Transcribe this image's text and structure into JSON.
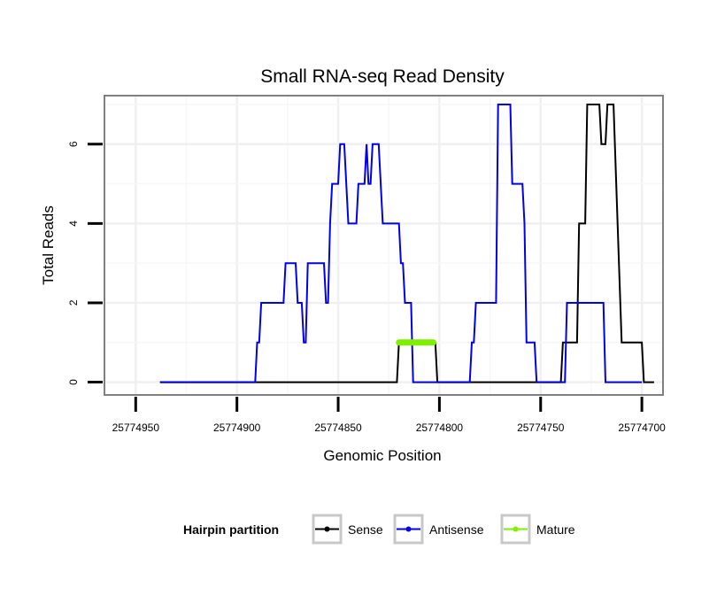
{
  "chart_data": {
    "type": "line",
    "title": "Small RNA-seq Read Density",
    "xlabel": "Genomic Position",
    "ylabel": "Total Reads",
    "xlim": [
      25774965,
      25774690
    ],
    "x_reversed": true,
    "ylim": [
      -0.3,
      7.2
    ],
    "x_ticks": [
      25774950,
      25774900,
      25774850,
      25774800,
      25774750,
      25774700
    ],
    "x_tick_labels": [
      "25774950",
      "25774900",
      "25774850",
      "25774800",
      "25774750",
      "25774700"
    ],
    "y_ticks": [
      0,
      2,
      4,
      6
    ],
    "y_tick_labels": [
      "0",
      "2",
      "4",
      "6"
    ],
    "grid": true,
    "legend": {
      "title": "Hairpin partition",
      "position": "bottom",
      "entries": [
        "Sense",
        "Antisense",
        "Mature"
      ]
    },
    "series": [
      {
        "name": "Sense",
        "color": "#000000",
        "points": [
          [
            25774938,
            0
          ],
          [
            25774821,
            0
          ],
          [
            25774820,
            1
          ],
          [
            25774802,
            1
          ],
          [
            25774801,
            0
          ],
          [
            25774740,
            0
          ],
          [
            25774739,
            1
          ],
          [
            25774732,
            1
          ],
          [
            25774731,
            4
          ],
          [
            25774728,
            4
          ],
          [
            25774727,
            7
          ],
          [
            25774721,
            7
          ],
          [
            25774720,
            6
          ],
          [
            25774718,
            6
          ],
          [
            25774717,
            7
          ],
          [
            25774714,
            7
          ],
          [
            25774712,
            4
          ],
          [
            25774710,
            1
          ],
          [
            25774700,
            1
          ],
          [
            25774699,
            0
          ],
          [
            25774694,
            0
          ]
        ]
      },
      {
        "name": "Antisense",
        "color": "#0000ee",
        "points": [
          [
            25774938,
            0
          ],
          [
            25774891,
            0
          ],
          [
            25774890,
            1
          ],
          [
            25774889,
            1
          ],
          [
            25774888,
            2
          ],
          [
            25774877,
            2
          ],
          [
            25774876,
            3
          ],
          [
            25774871,
            3
          ],
          [
            25774870,
            2
          ],
          [
            25774868,
            2
          ],
          [
            25774867,
            1
          ],
          [
            25774866,
            1
          ],
          [
            25774865,
            3
          ],
          [
            25774857,
            3
          ],
          [
            25774856,
            2
          ],
          [
            25774855,
            2
          ],
          [
            25774854,
            4
          ],
          [
            25774853,
            5
          ],
          [
            25774850,
            5
          ],
          [
            25774849,
            6
          ],
          [
            25774847,
            6
          ],
          [
            25774845,
            4
          ],
          [
            25774841,
            4
          ],
          [
            25774840,
            5
          ],
          [
            25774837,
            5
          ],
          [
            25774836,
            6
          ],
          [
            25774835,
            5
          ],
          [
            25774834,
            5
          ],
          [
            25774833,
            6
          ],
          [
            25774830,
            6
          ],
          [
            25774828,
            4
          ],
          [
            25774820,
            4
          ],
          [
            25774819,
            3
          ],
          [
            25774818,
            3
          ],
          [
            25774817,
            2
          ],
          [
            25774814,
            2
          ],
          [
            25774813,
            0
          ],
          [
            25774785,
            0
          ],
          [
            25774784,
            1
          ],
          [
            25774783,
            1
          ],
          [
            25774782,
            2
          ],
          [
            25774772,
            2
          ],
          [
            25774771,
            7
          ],
          [
            25774765,
            7
          ],
          [
            25774764,
            5
          ],
          [
            25774759,
            5
          ],
          [
            25774758,
            4
          ],
          [
            25774757,
            1
          ],
          [
            25774753,
            1
          ],
          [
            25774752,
            0
          ],
          [
            25774738,
            0
          ],
          [
            25774737,
            2
          ],
          [
            25774719,
            2
          ],
          [
            25774718,
            0
          ],
          [
            25774700,
            0
          ]
        ]
      },
      {
        "name": "Mature",
        "color": "#7fee00",
        "points": [
          [
            25774820,
            1
          ],
          [
            25774803,
            1
          ]
        ]
      }
    ]
  }
}
